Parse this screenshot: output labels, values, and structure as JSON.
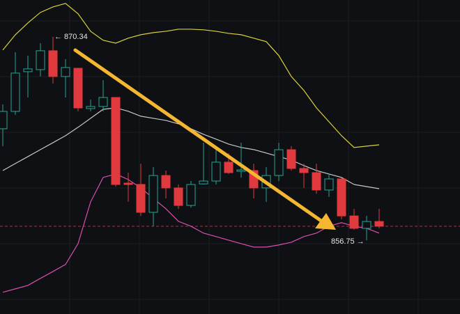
{
  "chart_data": {
    "type": "candlestick",
    "ylim": [
      851.83,
      872.8
    ],
    "up_color": "#26a69a",
    "down_color": "#e0393e",
    "open": [
      864.2,
      865.36,
      868.01,
      868.15,
      869.41,
      867.69,
      868.24,
      865.55,
      865.69,
      866.29,
      860.57,
      860.48,
      858.62,
      861.08,
      860.25,
      859.08,
      860.52,
      860.71,
      861.97,
      861.36,
      861.41,
      860.25,
      861.08,
      862.8,
      861.55,
      861.27,
      860.11,
      860.85,
      858.38,
      857.55,
      858.01
    ],
    "high": [
      865.83,
      869.31,
      869.08,
      869.92,
      870.34,
      868.85,
      868.24,
      866.15,
      867.45,
      866.29,
      861.27,
      861.87,
      861.64,
      861.41,
      860.48,
      860.71,
      863.27,
      862.8,
      862.57,
      863.27,
      861.87,
      861.64,
      863.27,
      863.04,
      861.87,
      861.87,
      861.18,
      860.94,
      858.85,
      858.38,
      858.85
    ],
    "low": [
      863.04,
      865.13,
      866.29,
      867.69,
      867.22,
      866.29,
      865.36,
      865.36,
      865.36,
      860.34,
      859.32,
      858.38,
      857.69,
      859.55,
      858.85,
      858.94,
      860.48,
      860.48,
      861.18,
      860.94,
      859.55,
      859.32,
      860.71,
      861.41,
      860.25,
      859.87,
      859.64,
      858.15,
      857.46,
      856.75,
      857.55
    ],
    "close": [
      865.36,
      867.92,
      868.2,
      869.41,
      867.69,
      868.29,
      865.59,
      865.69,
      866.29,
      860.48,
      860.48,
      858.62,
      861.08,
      860.25,
      859.08,
      860.48,
      860.71,
      861.97,
      861.27,
      861.45,
      860.25,
      861.08,
      862.8,
      861.55,
      861.27,
      860.11,
      860.85,
      858.38,
      857.55,
      858.01,
      857.69
    ],
    "lines": [
      {
        "color": "#d9d13a",
        "values": [
          869.46,
          870.48,
          871.27,
          871.97,
          872.34,
          872.57,
          871.88,
          870.71,
          870.11,
          869.92,
          870.25,
          870.48,
          870.62,
          870.71,
          870.85,
          870.85,
          870.81,
          870.71,
          870.57,
          870.48,
          870.25,
          870.02,
          869.09,
          867.69,
          866.76,
          865.6,
          864.67,
          863.74,
          862.95,
          863.04,
          863.13
        ]
      },
      {
        "color": "#c8c8c8",
        "values": [
          861.41,
          861.88,
          862.34,
          862.81,
          863.27,
          863.74,
          864.3,
          864.9,
          865.5,
          865.6,
          865.37,
          865.04,
          864.9,
          864.76,
          864.53,
          864.2,
          863.83,
          863.51,
          863.18,
          862.95,
          862.81,
          862.58,
          862.34,
          862.11,
          861.74,
          861.41,
          861.18,
          860.95,
          860.48,
          860.34,
          860.2
        ]
      },
      {
        "color": "#d94fb0",
        "values": [
          853.28,
          853.51,
          853.74,
          854.21,
          854.67,
          855.14,
          856.53,
          859.32,
          860.95,
          861.18,
          860.81,
          860.25,
          859.55,
          858.86,
          858.02,
          857.69,
          857.23,
          857.0,
          856.76,
          856.53,
          856.3,
          856.3,
          856.44,
          856.62,
          857.0,
          857.23,
          857.69,
          857.93,
          857.69,
          857.55,
          857.23
        ]
      }
    ],
    "price_line": 857.69,
    "price_line_color": "#e0393e",
    "high_label": "← 870.34",
    "low_label": "856.75 →"
  }
}
